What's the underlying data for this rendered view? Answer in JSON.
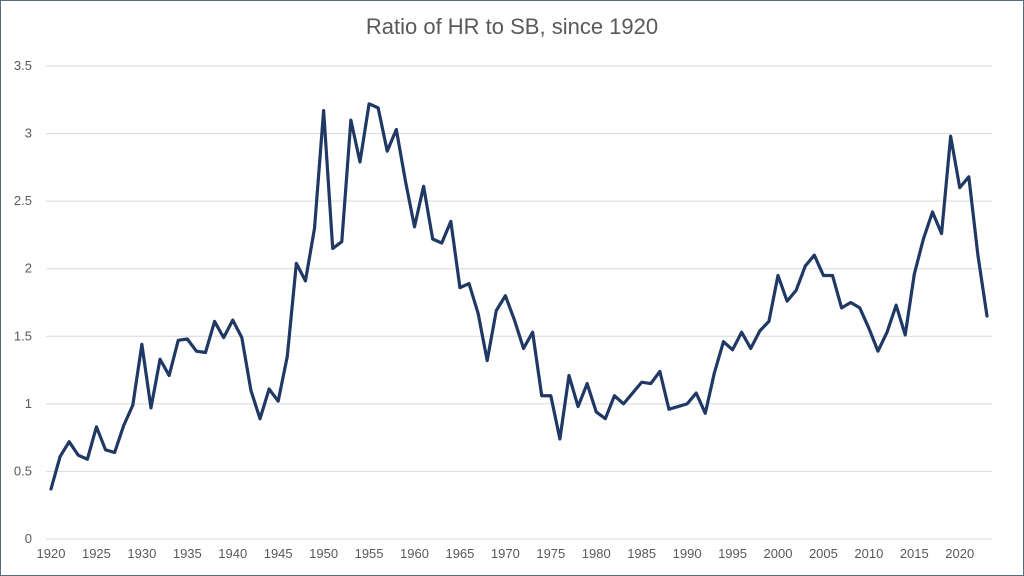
{
  "chart_data": {
    "type": "line",
    "title": "Ratio of HR to SB, since 1920",
    "xlabel": "",
    "ylabel": "",
    "xlim": [
      1920,
      2023
    ],
    "ylim": [
      0,
      3.5
    ],
    "grid": true,
    "legend": "none",
    "x_ticks": [
      1920,
      1925,
      1930,
      1935,
      1940,
      1945,
      1950,
      1955,
      1960,
      1965,
      1970,
      1975,
      1980,
      1985,
      1990,
      1995,
      2000,
      2005,
      2010,
      2015,
      2020
    ],
    "y_ticks": [
      0,
      0.5,
      1,
      1.5,
      2,
      2.5,
      3,
      3.5
    ],
    "x_tick_labels": [
      "1920",
      "1925",
      "1930",
      "1935",
      "1940",
      "1945",
      "1950",
      "1955",
      "1960",
      "1965",
      "1970",
      "1975",
      "1980",
      "1985",
      "1990",
      "1995",
      "2000",
      "2005",
      "2010",
      "2015",
      "2020"
    ],
    "y_tick_labels": [
      "0",
      "0.5",
      "1",
      "1.5",
      "2",
      "2.5",
      "3",
      "3.5"
    ],
    "series": [
      {
        "color": "#203864",
        "x": [
          1920,
          1921,
          1922,
          1923,
          1924,
          1925,
          1926,
          1927,
          1928,
          1929,
          1930,
          1931,
          1932,
          1933,
          1934,
          1935,
          1936,
          1937,
          1938,
          1939,
          1940,
          1941,
          1942,
          1943,
          1944,
          1945,
          1946,
          1947,
          1948,
          1949,
          1950,
          1951,
          1952,
          1953,
          1954,
          1955,
          1956,
          1957,
          1958,
          1959,
          1960,
          1961,
          1962,
          1963,
          1964,
          1965,
          1966,
          1967,
          1968,
          1969,
          1970,
          1971,
          1972,
          1973,
          1974,
          1975,
          1976,
          1977,
          1978,
          1979,
          1980,
          1981,
          1982,
          1983,
          1984,
          1985,
          1986,
          1987,
          1988,
          1989,
          1990,
          1991,
          1992,
          1993,
          1994,
          1995,
          1996,
          1997,
          1998,
          1999,
          2000,
          2001,
          2002,
          2003,
          2004,
          2005,
          2006,
          2007,
          2008,
          2009,
          2010,
          2011,
          2012,
          2013,
          2014,
          2015,
          2016,
          2017,
          2018,
          2019,
          2020,
          2021,
          2022,
          2023
        ],
        "values": [
          0.37,
          0.61,
          0.72,
          0.62,
          0.59,
          0.83,
          0.66,
          0.64,
          0.84,
          0.99,
          1.44,
          0.97,
          1.33,
          1.21,
          1.47,
          1.48,
          1.39,
          1.38,
          1.61,
          1.49,
          1.62,
          1.49,
          1.1,
          0.89,
          1.11,
          1.02,
          1.35,
          2.04,
          1.91,
          2.3,
          3.17,
          2.15,
          2.2,
          3.1,
          2.79,
          3.22,
          3.19,
          2.87,
          3.03,
          2.65,
          2.31,
          2.61,
          2.22,
          2.19,
          2.35,
          1.86,
          1.89,
          1.67,
          1.32,
          1.69,
          1.8,
          1.62,
          1.41,
          1.53,
          1.06,
          1.06,
          0.74,
          1.21,
          0.98,
          1.15,
          0.94,
          0.89,
          1.06,
          1.0,
          1.08,
          1.16,
          1.15,
          1.24,
          0.96,
          0.98,
          1.0,
          1.08,
          0.93,
          1.23,
          1.46,
          1.4,
          1.53,
          1.41,
          1.54,
          1.61,
          1.95,
          1.76,
          1.84,
          2.02,
          2.1,
          1.95,
          1.95,
          1.71,
          1.75,
          1.71,
          1.56,
          1.39,
          1.53,
          1.73,
          1.51,
          1.96,
          2.22,
          2.42,
          2.26,
          2.98,
          2.6,
          2.68,
          2.1,
          1.65
        ]
      }
    ]
  }
}
